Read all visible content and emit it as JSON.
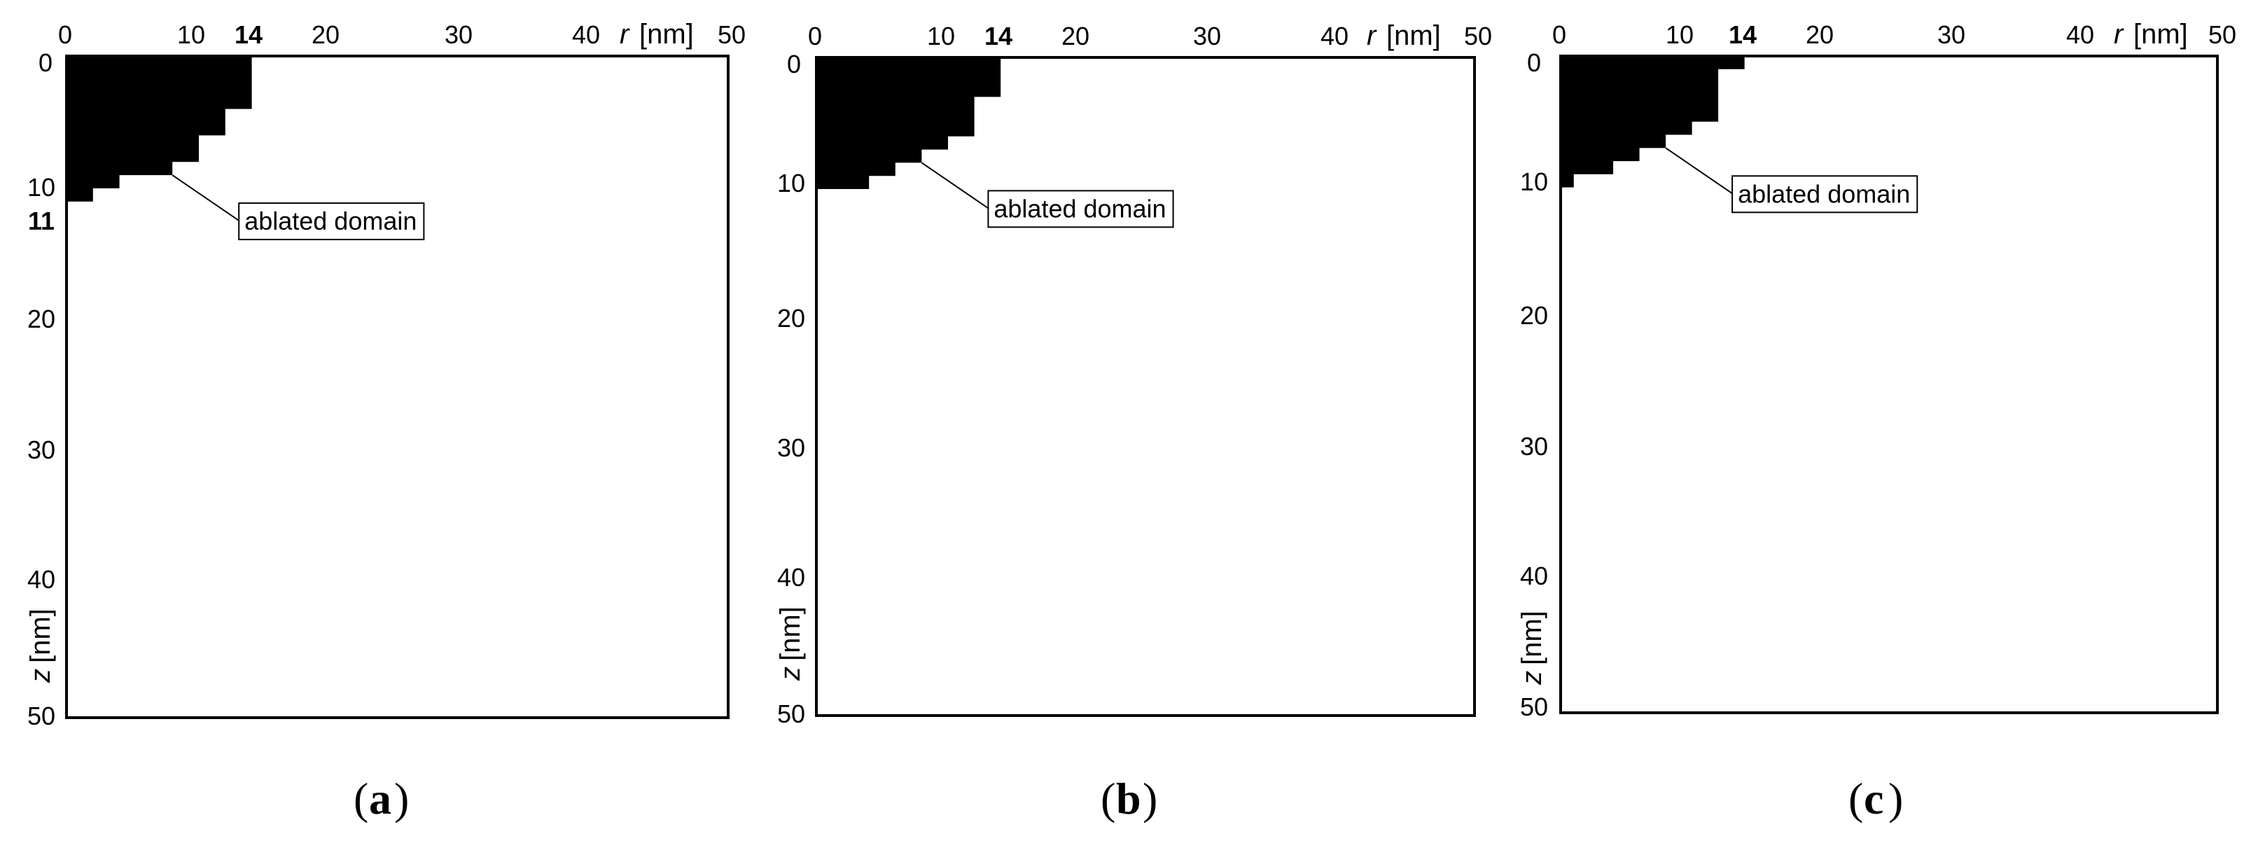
{
  "panels": [
    {
      "caption_letter": "a",
      "x_ticks": [
        "0",
        "10",
        "14",
        "20",
        "30",
        "40",
        "50"
      ],
      "x_axis_label": "r",
      "x_axis_unit": "[nm]",
      "y_ticks": [
        "0",
        "10",
        "11",
        "20",
        "30",
        "40",
        "50"
      ],
      "y_axis_label": "z",
      "y_axis_unit": "[nm]",
      "annotation": "ablated domain",
      "bold_ticks": [
        "14",
        "11"
      ],
      "ablated_profile": [
        {
          "r": 14,
          "z_from": 0,
          "z_to": 4
        },
        {
          "r": 12,
          "z_from": 4,
          "z_to": 6
        },
        {
          "r": 10,
          "z_from": 6,
          "z_to": 8
        },
        {
          "r": 8,
          "z_from": 8,
          "z_to": 9
        },
        {
          "r": 4,
          "z_from": 9,
          "z_to": 10
        },
        {
          "r": 2,
          "z_from": 10,
          "z_to": 11
        }
      ]
    },
    {
      "caption_letter": "b",
      "x_ticks": [
        "0",
        "10",
        "14",
        "20",
        "30",
        "40",
        "50"
      ],
      "x_axis_label": "r",
      "x_axis_unit": "[nm]",
      "y_ticks": [
        "0",
        "10",
        "20",
        "30",
        "40",
        "50"
      ],
      "y_axis_label": "z",
      "y_axis_unit": "[nm]",
      "annotation": "ablated domain",
      "bold_ticks": [
        "14"
      ],
      "ablated_profile": [
        {
          "r": 14,
          "z_from": 0,
          "z_to": 3
        },
        {
          "r": 12,
          "z_from": 3,
          "z_to": 6
        },
        {
          "r": 10,
          "z_from": 6,
          "z_to": 7
        },
        {
          "r": 8,
          "z_from": 7,
          "z_to": 8
        },
        {
          "r": 6,
          "z_from": 8,
          "z_to": 9
        },
        {
          "r": 4,
          "z_from": 9,
          "z_to": 10
        }
      ]
    },
    {
      "caption_letter": "c",
      "x_ticks": [
        "0",
        "10",
        "14",
        "20",
        "30",
        "40",
        "50"
      ],
      "x_axis_label": "r",
      "x_axis_unit": "[nm]",
      "y_ticks": [
        "0",
        "10",
        "20",
        "30",
        "40",
        "50"
      ],
      "y_axis_label": "z",
      "y_axis_unit": "[nm]",
      "annotation": "ablated domain",
      "bold_ticks": [
        "14"
      ],
      "ablated_profile": [
        {
          "r": 14,
          "z_from": 0,
          "z_to": 1
        },
        {
          "r": 12,
          "z_from": 1,
          "z_to": 5
        },
        {
          "r": 10,
          "z_from": 5,
          "z_to": 6
        },
        {
          "r": 8,
          "z_from": 6,
          "z_to": 7
        },
        {
          "r": 6,
          "z_from": 7,
          "z_to": 8
        },
        {
          "r": 4,
          "z_from": 8,
          "z_to": 9
        },
        {
          "r": 1,
          "z_from": 9,
          "z_to": 10
        }
      ]
    }
  ],
  "caption_open": "(",
  "caption_close": ")"
}
